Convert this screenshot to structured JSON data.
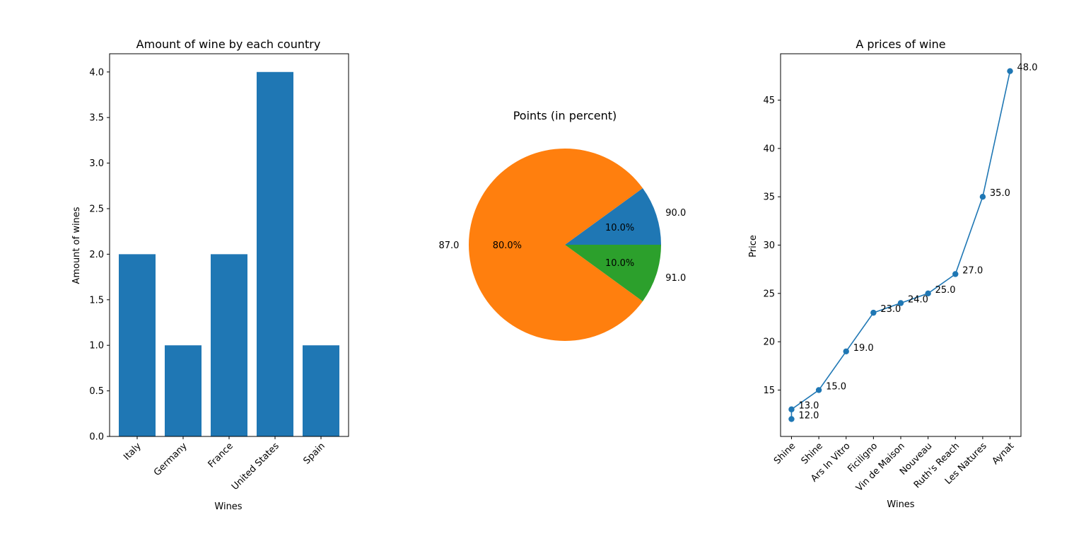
{
  "chart_data": [
    {
      "type": "bar",
      "title": "Amount of wine by each country",
      "xlabel": "Wines",
      "ylabel": "Amount of wines",
      "categories": [
        "Italy",
        "Germany",
        "France",
        "United States",
        "Spain"
      ],
      "values": [
        2,
        1,
        2,
        4,
        1
      ],
      "ylim": [
        0,
        4.2
      ],
      "yticks": [
        "0.0",
        "0.5",
        "1.0",
        "1.5",
        "2.0",
        "2.5",
        "3.0",
        "3.5",
        "4.0"
      ],
      "color": "#1f77b4",
      "grid": false
    },
    {
      "type": "pie",
      "title": "Points (in percent)",
      "labels": [
        "90.0",
        "87.0",
        "91.0"
      ],
      "values": [
        10,
        80,
        10
      ],
      "pct_labels": [
        "10.0%",
        "80.0%",
        "10.0%"
      ],
      "colors": [
        "#1f77b4",
        "#ff7f0e",
        "#2ca02c"
      ]
    },
    {
      "type": "line",
      "title": "A prices of wine",
      "xlabel": "Wines",
      "ylabel": "Price",
      "categories": [
        "Shine",
        "Shine",
        "Ars In Vitro",
        "Ficiligno",
        "Vin de Maison",
        "Nouveau",
        "Ruth's Reach",
        "Les Natures",
        "Aynat"
      ],
      "points": [
        {
          "x": 0,
          "y": 12.0,
          "label": "12.0"
        },
        {
          "x": 0,
          "y": 13.0,
          "label": "13.0"
        },
        {
          "x": 1,
          "y": 15.0,
          "label": "15.0"
        },
        {
          "x": 2,
          "y": 19.0,
          "label": "19.0"
        },
        {
          "x": 3,
          "y": 23.0,
          "label": "23.0"
        },
        {
          "x": 4,
          "y": 24.0,
          "label": "24.0"
        },
        {
          "x": 5,
          "y": 25.0,
          "label": "25.0"
        },
        {
          "x": 6,
          "y": 27.0,
          "label": "27.0"
        },
        {
          "x": 7,
          "y": 35.0,
          "label": "35.0"
        },
        {
          "x": 8,
          "y": 48.0,
          "label": "48.0"
        }
      ],
      "ylim": [
        10.2,
        49.8
      ],
      "yticks": [
        "15",
        "20",
        "25",
        "30",
        "35",
        "40",
        "45"
      ],
      "color": "#1f77b4",
      "grid": false
    }
  ]
}
